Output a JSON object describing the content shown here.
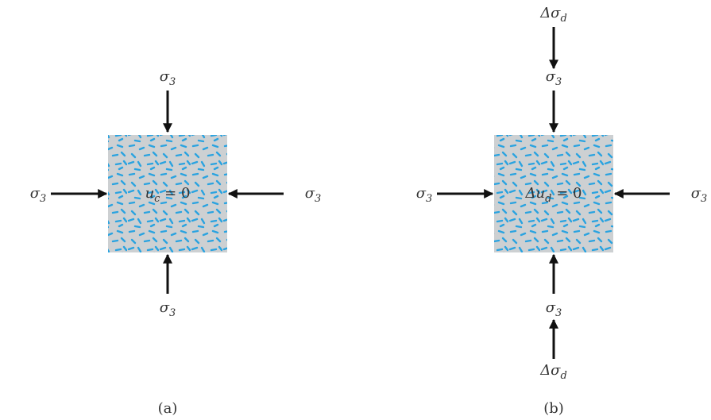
{
  "panels": [
    {
      "caption": "(a)",
      "center": {
        "base": "u",
        "sub": "c",
        "rest": " = 0"
      },
      "top": {
        "base": "σ",
        "sub": "3"
      },
      "left": {
        "base": "σ",
        "sub": "3"
      },
      "right": {
        "base": "σ",
        "sub": "3"
      },
      "bottom": {
        "base": "σ",
        "sub": "3"
      }
    },
    {
      "caption": "(b)",
      "center": {
        "base": "Δu",
        "sub": "d",
        "rest": " = 0"
      },
      "top_extra": {
        "base": "Δσ",
        "sub": "d"
      },
      "top": {
        "base": "σ",
        "sub": "3"
      },
      "left": {
        "base": "σ",
        "sub": "3"
      },
      "right": {
        "base": "σ",
        "sub": "3"
      },
      "bottom": {
        "base": "σ",
        "sub": "3"
      },
      "bottom_extra": {
        "base": "Δσ",
        "sub": "d"
      }
    }
  ]
}
